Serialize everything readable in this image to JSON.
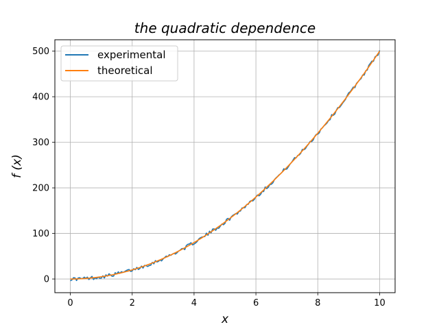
{
  "chart_data": {
    "type": "line",
    "title": "the quadratic dependence",
    "xlabel": "x",
    "ylabel": "f (x)",
    "xlim": [
      -0.5,
      10.5
    ],
    "ylim": [
      -30,
      525
    ],
    "xticks": [
      0,
      2,
      4,
      6,
      8,
      10
    ],
    "yticks": [
      0,
      100,
      200,
      300,
      400,
      500
    ],
    "grid": true,
    "legend_position": "upper-left",
    "series": [
      {
        "name": "experimental",
        "color": "#1f77b4",
        "formula": "5*x^2 + noise",
        "x_range": [
          0,
          10
        ],
        "points": 201
      },
      {
        "name": "theoretical",
        "color": "#ff7f0e",
        "formula": "5*x^2",
        "x_range": [
          0,
          10
        ],
        "points": 201
      }
    ]
  }
}
